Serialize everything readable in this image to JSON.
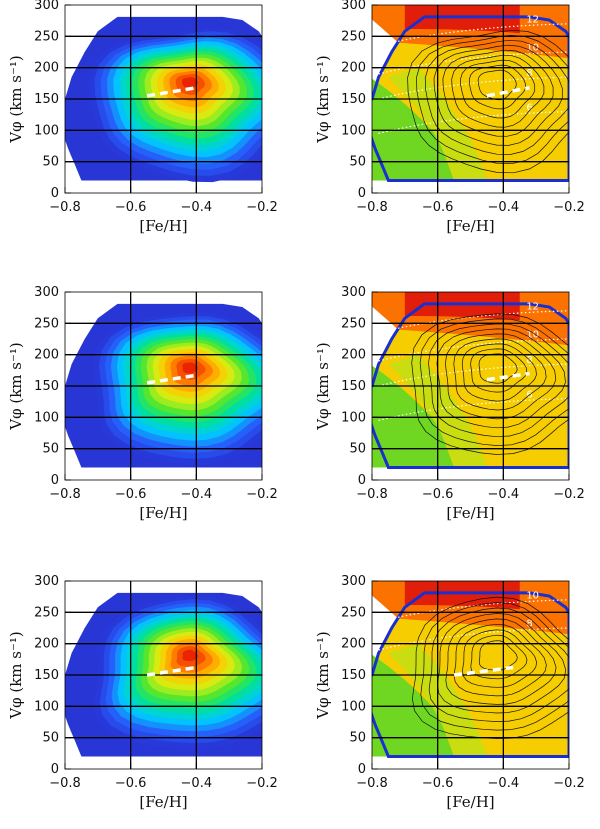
{
  "chart_data": [
    {
      "type": "heatmap",
      "panel": "density-top",
      "row": 0,
      "col": 0,
      "ylabel": "Vφ (km s⁻¹)",
      "xlabel": "[Fe/H]",
      "xlim": [
        -0.8,
        -0.2
      ],
      "ylim": [
        0,
        300
      ],
      "xticks": [
        "−0.8",
        "−0.6",
        "−0.4",
        "−0.2"
      ],
      "yticks": [
        "0",
        "50",
        "100",
        "150",
        "200",
        "250",
        "300"
      ],
      "peak": {
        "x": -0.42,
        "y": 175
      },
      "trend_line": {
        "x": [
          -0.55,
          -0.4
        ],
        "y": [
          155,
          168
        ]
      },
      "contours": []
    },
    {
      "type": "heatmap",
      "panel": "map-top",
      "row": 0,
      "col": 1,
      "ylabel": "Vφ (km s⁻¹)",
      "xlabel": "[Fe/H]",
      "xlim": [
        -0.8,
        -0.2
      ],
      "ylim": [
        0,
        300
      ],
      "xticks": [
        "−0.8",
        "−0.6",
        "−0.4",
        "−0.2"
      ],
      "yticks": [
        "0",
        "50",
        "100",
        "150",
        "200",
        "250",
        "300"
      ],
      "peak": {
        "x": -0.42,
        "y": 175
      },
      "trend_line": {
        "x": [
          -0.45,
          -0.32
        ],
        "y": [
          155,
          168
        ]
      },
      "contours": [
        "12",
        "10",
        "8",
        "6"
      ]
    },
    {
      "type": "heatmap",
      "panel": "density-middle",
      "row": 1,
      "col": 0,
      "ylabel": "Vφ (km s⁻¹)",
      "xlabel": "[Fe/H]",
      "xlim": [
        -0.8,
        -0.2
      ],
      "ylim": [
        0,
        300
      ],
      "xticks": [
        "−0.8",
        "−0.6",
        "−0.4",
        "−0.2"
      ],
      "yticks": [
        "0",
        "50",
        "100",
        "150",
        "200",
        "250",
        "300"
      ],
      "peak": {
        "x": -0.42,
        "y": 178
      },
      "trend_line": {
        "x": [
          -0.55,
          -0.4
        ],
        "y": [
          155,
          167
        ]
      },
      "contours": []
    },
    {
      "type": "heatmap",
      "panel": "map-middle",
      "row": 1,
      "col": 1,
      "ylabel": "Vφ (km s⁻¹)",
      "xlabel": "[Fe/H]",
      "xlim": [
        -0.8,
        -0.2
      ],
      "ylim": [
        0,
        300
      ],
      "xticks": [
        "−0.8",
        "−0.6",
        "−0.4",
        "−0.2"
      ],
      "yticks": [
        "0",
        "50",
        "100",
        "150",
        "200",
        "250",
        "300"
      ],
      "peak": {
        "x": -0.42,
        "y": 180
      },
      "trend_line": {
        "x": [
          -0.45,
          -0.32
        ],
        "y": [
          160,
          170
        ]
      },
      "contours": [
        "12",
        "10",
        "8",
        "6"
      ]
    },
    {
      "type": "heatmap",
      "panel": "density-bottom",
      "row": 2,
      "col": 0,
      "ylabel": "Vφ (km s⁻¹)",
      "xlabel": "[Fe/H]",
      "xlim": [
        -0.8,
        -0.2
      ],
      "ylim": [
        0,
        300
      ],
      "xticks": [
        "−0.8",
        "−0.6",
        "−0.4",
        "−0.2"
      ],
      "yticks": [
        "0",
        "50",
        "100",
        "150",
        "200",
        "250",
        "300"
      ],
      "peak": {
        "x": -0.42,
        "y": 180
      },
      "trend_line": {
        "x": [
          -0.55,
          -0.4
        ],
        "y": [
          150,
          162
        ]
      },
      "contours": []
    },
    {
      "type": "heatmap",
      "panel": "map-bottom",
      "row": 2,
      "col": 1,
      "ylabel": "Vφ (km s⁻¹)",
      "xlabel": "[Fe/H]",
      "xlim": [
        -0.8,
        -0.2
      ],
      "ylim": [
        0,
        300
      ],
      "xticks": [
        "−0.8",
        "−0.6",
        "−0.4",
        "−0.2"
      ],
      "yticks": [
        "0",
        "50",
        "100",
        "150",
        "200",
        "250",
        "300"
      ],
      "peak": {
        "x": -0.42,
        "y": 182
      },
      "trend_line": {
        "x": [
          -0.55,
          -0.37
        ],
        "y": [
          150,
          162
        ]
      },
      "contours": [
        "10",
        "8"
      ]
    }
  ]
}
